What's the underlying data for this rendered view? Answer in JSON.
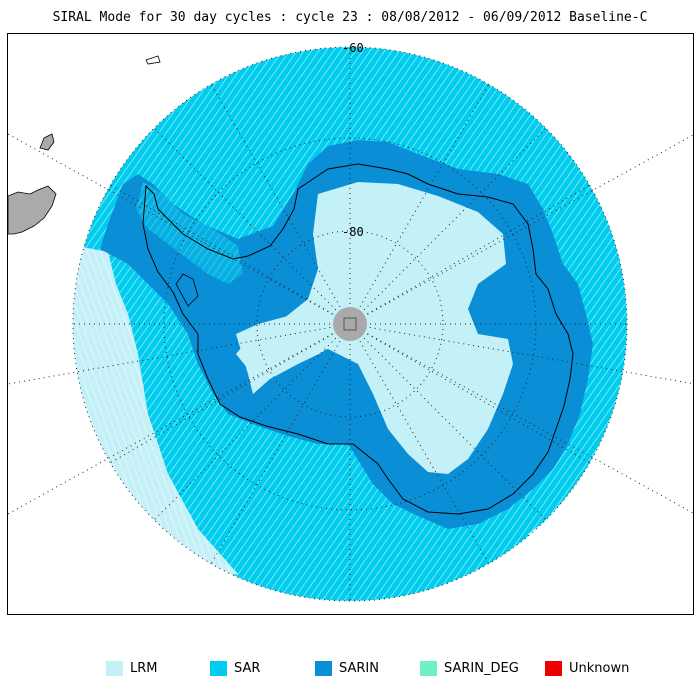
{
  "title": "SIRAL Mode for 30 day cycles : cycle 23 : 08/08/2012 - 06/09/2012 Baseline-C",
  "lat_labels": [
    "-60",
    "-80"
  ],
  "colors": {
    "lrm": "#c4f0f8",
    "sar": "#00cdee",
    "sarin": "#0a8fd6",
    "sarin_deg": "#6ff0c8",
    "unknown": "#ee0000",
    "land_other": "#aaaaaa",
    "pole_hole": "#a9a9a9"
  },
  "legend": [
    {
      "label": "LRM",
      "color": "#c4f0f8"
    },
    {
      "label": "SAR",
      "color": "#00cdee"
    },
    {
      "label": "SARIN",
      "color": "#0a8fd6"
    },
    {
      "label": "SARIN_DEG",
      "color": "#6ff0c8"
    },
    {
      "label": "Unknown",
      "color": "#ee0000"
    }
  ]
}
